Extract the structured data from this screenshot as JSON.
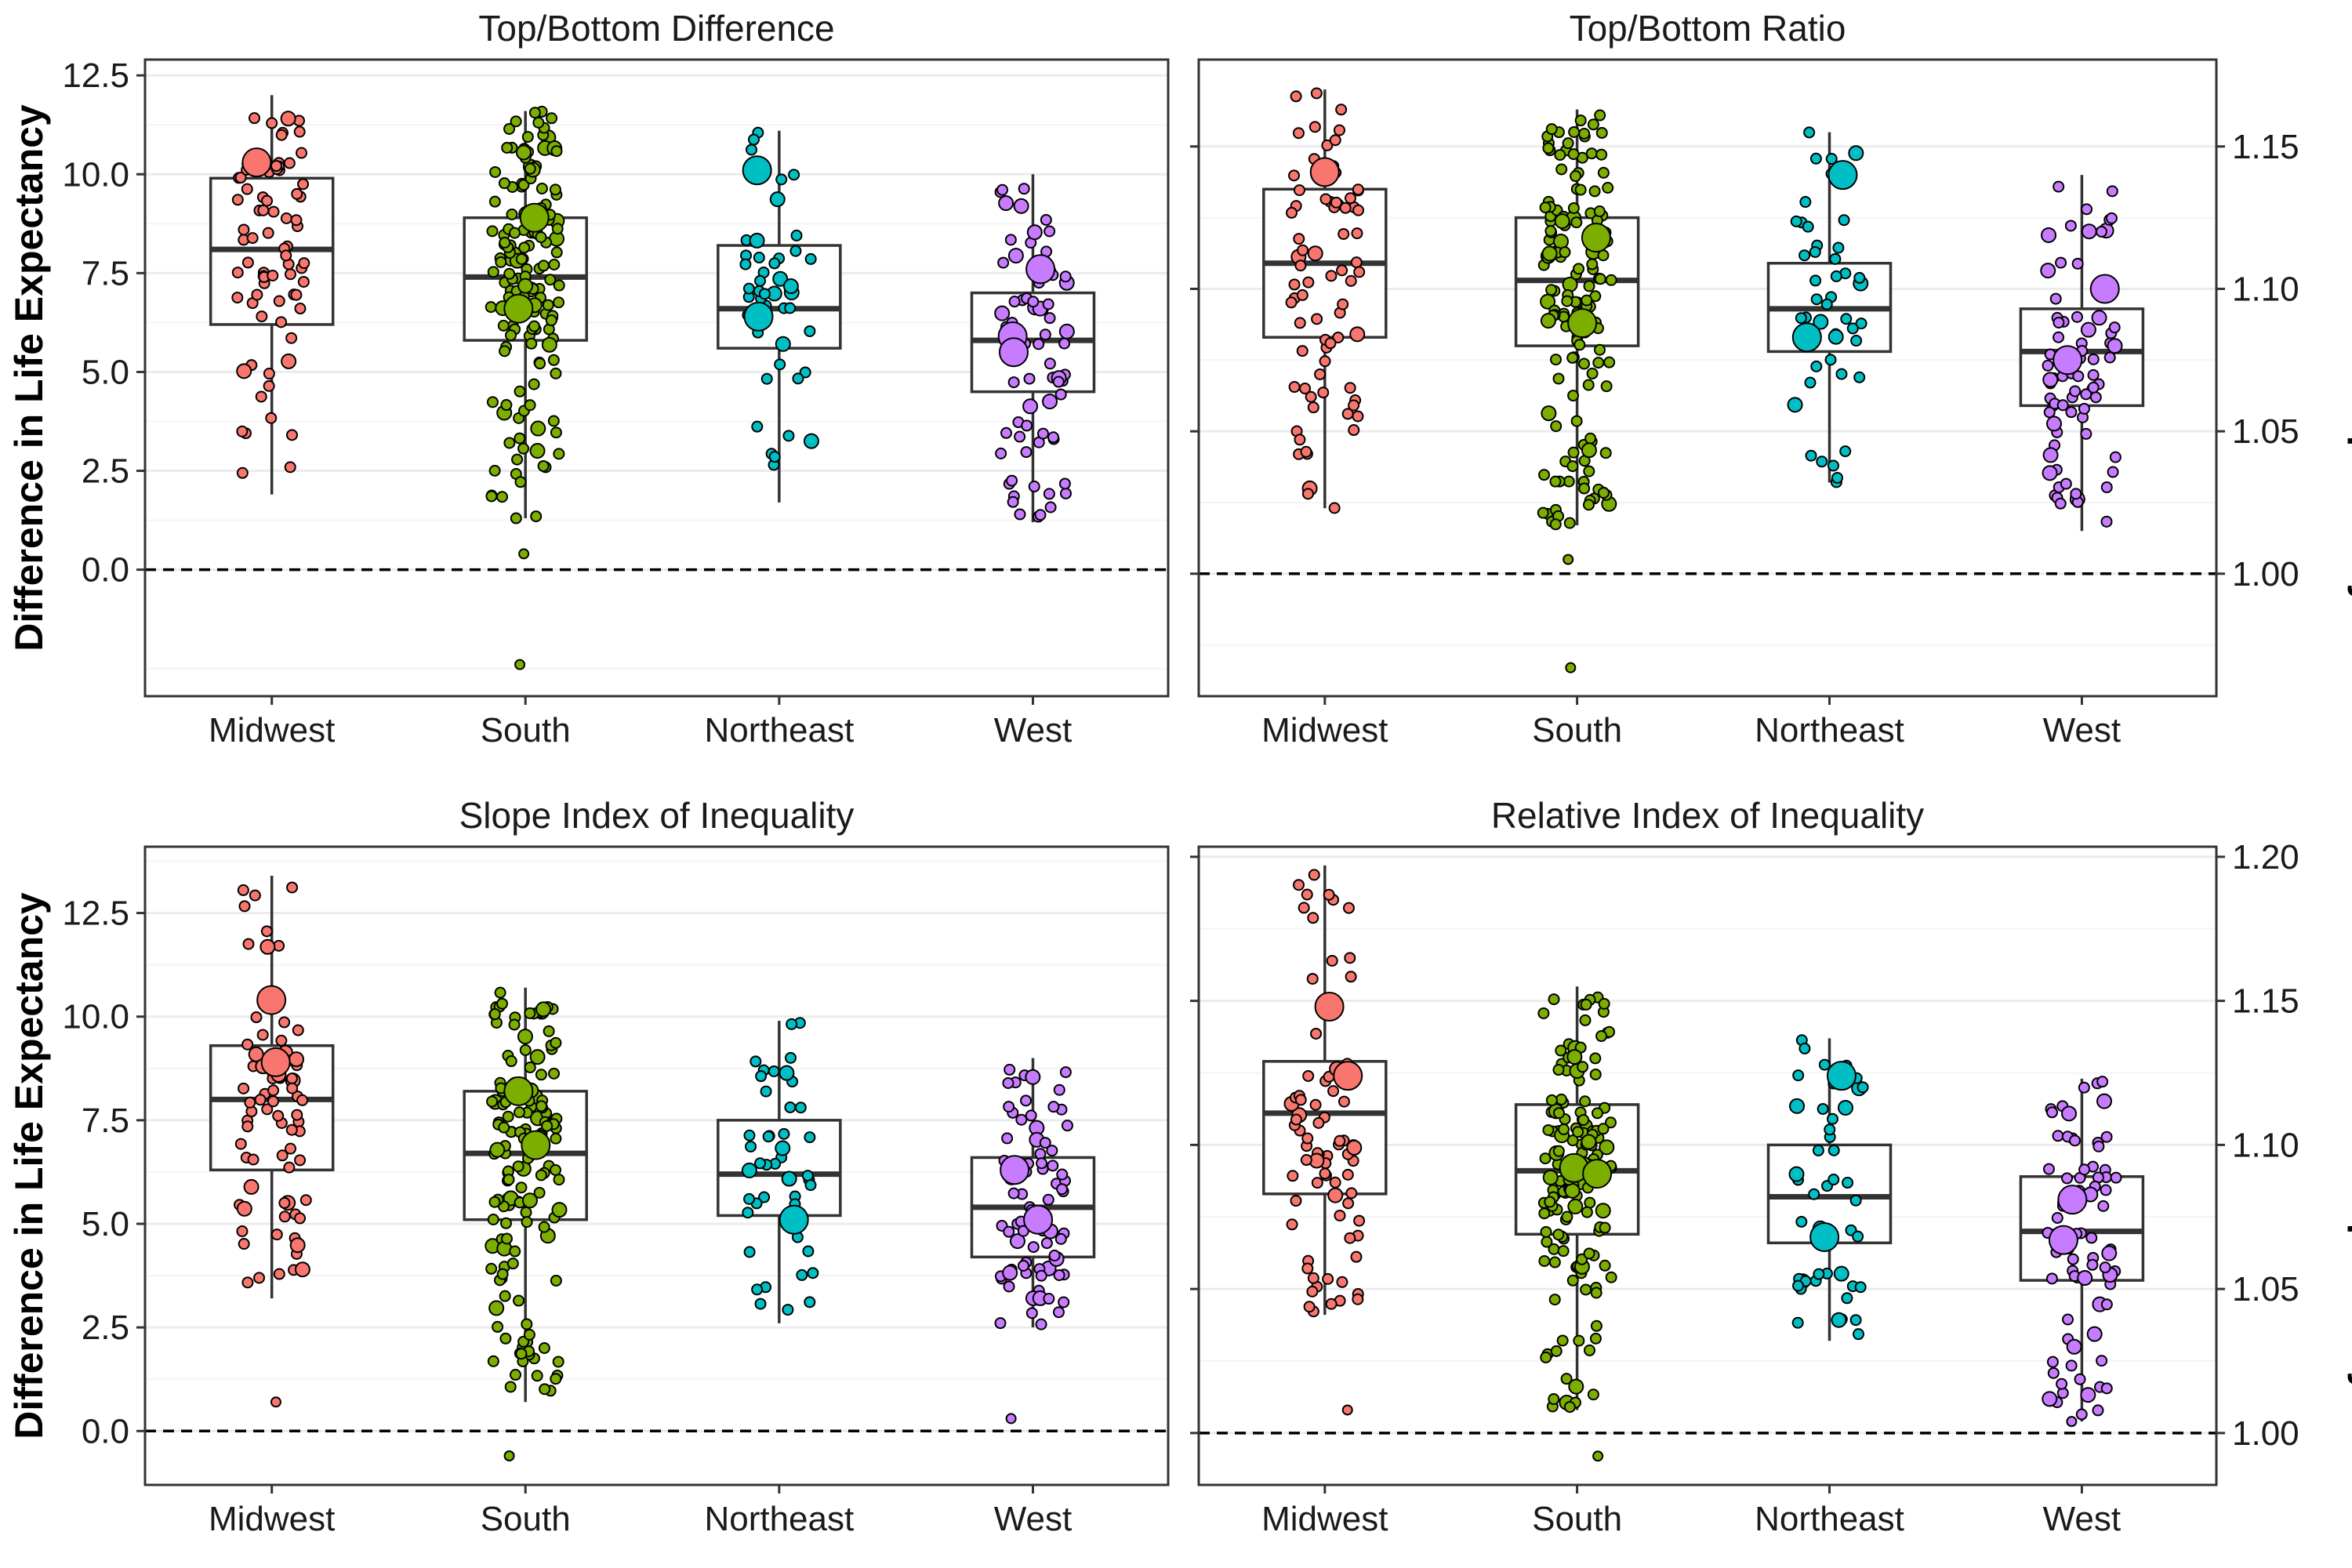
{
  "chart_data": [
    {
      "type": "boxplot",
      "title": "Top/Bottom Difference",
      "ylabel": "Difference in Life Expectancy",
      "axis_side": "left",
      "categories": [
        "Midwest",
        "South",
        "Northeast",
        "West"
      ],
      "ylim": [
        -3.2,
        12.9
      ],
      "yticks": [
        0.0,
        2.5,
        5.0,
        7.5,
        10.0,
        12.5
      ],
      "ytick_labels": [
        "0.0",
        "2.5",
        "5.0",
        "7.5",
        "10.0",
        "12.5"
      ],
      "minor_ticks": [
        -2.5,
        1.25,
        3.75,
        6.25,
        8.75,
        11.25
      ],
      "reference_line": 0,
      "boxes": [
        {
          "category": "Midwest",
          "whisker_low": 1.9,
          "q1": 6.2,
          "median": 8.1,
          "q3": 9.9,
          "whisker_high": 12.0
        },
        {
          "category": "South",
          "whisker_low": 1.3,
          "q1": 5.8,
          "median": 7.4,
          "q3": 8.9,
          "whisker_high": 11.6
        },
        {
          "category": "Northeast",
          "whisker_low": 1.7,
          "q1": 5.6,
          "median": 6.6,
          "q3": 8.2,
          "whisker_high": 11.1
        },
        {
          "category": "West",
          "whisker_low": 1.2,
          "q1": 4.5,
          "median": 5.8,
          "q3": 7.0,
          "whisker_high": 10.0
        }
      ],
      "n_points": [
        75,
        150,
        45,
        75
      ],
      "large_points": [
        {
          "category": "Midwest",
          "value": 10.3
        },
        {
          "category": "South",
          "value": 8.9
        },
        {
          "category": "South",
          "value": 6.6
        },
        {
          "category": "Northeast",
          "value": 10.1
        },
        {
          "category": "Northeast",
          "value": 6.4
        },
        {
          "category": "West",
          "value": 7.6
        },
        {
          "category": "West",
          "value": 5.9
        },
        {
          "category": "West",
          "value": 5.5
        }
      ],
      "outliers": [
        {
          "category": "South",
          "value": 0.4
        },
        {
          "category": "South",
          "value": -2.4
        }
      ]
    },
    {
      "type": "boxplot",
      "title": "Top/Bottom Ratio",
      "ylabel": "Ratio of Life Expectancy",
      "axis_side": "right",
      "categories": [
        "Midwest",
        "South",
        "Northeast",
        "West"
      ],
      "ylim": [
        0.957,
        1.1805
      ],
      "yticks": [
        1.0,
        1.05,
        1.1,
        1.15
      ],
      "ytick_labels": [
        "1.00",
        "1.05",
        "1.10",
        "1.15"
      ],
      "minor_ticks": [
        0.975,
        1.025,
        1.075,
        1.125
      ],
      "reference_line": 1.0,
      "boxes": [
        {
          "category": "Midwest",
          "whisker_low": 1.023,
          "q1": 1.083,
          "median": 1.109,
          "q3": 1.135,
          "whisker_high": 1.17
        },
        {
          "category": "South",
          "whisker_low": 1.017,
          "q1": 1.08,
          "median": 1.103,
          "q3": 1.125,
          "whisker_high": 1.163
        },
        {
          "category": "Northeast",
          "whisker_low": 1.032,
          "q1": 1.078,
          "median": 1.093,
          "q3": 1.109,
          "whisker_high": 1.155
        },
        {
          "category": "West",
          "whisker_low": 1.015,
          "q1": 1.059,
          "median": 1.078,
          "q3": 1.093,
          "whisker_high": 1.14
        }
      ],
      "n_points": [
        75,
        150,
        45,
        75
      ],
      "large_points": [
        {
          "category": "Midwest",
          "value": 1.141
        },
        {
          "category": "South",
          "value": 1.118
        },
        {
          "category": "South",
          "value": 1.088
        },
        {
          "category": "Northeast",
          "value": 1.14
        },
        {
          "category": "Northeast",
          "value": 1.083
        },
        {
          "category": "West",
          "value": 1.1
        },
        {
          "category": "West",
          "value": 1.075
        }
      ],
      "outliers": [
        {
          "category": "South",
          "value": 1.005
        },
        {
          "category": "South",
          "value": 0.967
        }
      ]
    },
    {
      "type": "boxplot",
      "title": "Slope Index of Inequality",
      "ylabel": "Difference in Life Expectancy",
      "axis_side": "left",
      "categories": [
        "Midwest",
        "South",
        "Northeast",
        "West"
      ],
      "ylim": [
        -1.3,
        14.1
      ],
      "yticks": [
        0.0,
        2.5,
        5.0,
        7.5,
        10.0,
        12.5
      ],
      "ytick_labels": [
        "0.0",
        "2.5",
        "5.0",
        "7.5",
        "10.0",
        "12.5"
      ],
      "minor_ticks": [
        1.25,
        3.75,
        6.25,
        8.75,
        11.25,
        13.75
      ],
      "reference_line": 0,
      "boxes": [
        {
          "category": "Midwest",
          "whisker_low": 3.2,
          "q1": 6.3,
          "median": 8.0,
          "q3": 9.3,
          "whisker_high": 13.4
        },
        {
          "category": "South",
          "whisker_low": 0.7,
          "q1": 5.1,
          "median": 6.7,
          "q3": 8.2,
          "whisker_high": 10.7
        },
        {
          "category": "Northeast",
          "whisker_low": 2.6,
          "q1": 5.2,
          "median": 6.2,
          "q3": 7.5,
          "whisker_high": 9.9
        },
        {
          "category": "West",
          "whisker_low": 2.5,
          "q1": 4.2,
          "median": 5.4,
          "q3": 6.6,
          "whisker_high": 9.0
        }
      ],
      "n_points": [
        75,
        150,
        45,
        75
      ],
      "large_points": [
        {
          "category": "Midwest",
          "value": 10.4
        },
        {
          "category": "Midwest",
          "value": 8.9
        },
        {
          "category": "South",
          "value": 8.2
        },
        {
          "category": "South",
          "value": 6.9
        },
        {
          "category": "Northeast",
          "value": 5.1
        },
        {
          "category": "West",
          "value": 6.3
        },
        {
          "category": "West",
          "value": 5.1
        }
      ],
      "outliers": [
        {
          "category": "Midwest",
          "value": 0.7
        },
        {
          "category": "South",
          "value": -0.6
        },
        {
          "category": "West",
          "value": 0.3
        }
      ]
    },
    {
      "type": "boxplot",
      "title": "Relative Index of Inequality",
      "ylabel": "Ratio of Life Expectancy",
      "axis_side": "right",
      "categories": [
        "Midwest",
        "South",
        "Northeast",
        "West"
      ],
      "ylim": [
        0.982,
        1.2035
      ],
      "yticks": [
        1.0,
        1.05,
        1.1,
        1.15,
        1.2
      ],
      "ytick_labels": [
        "1.00",
        "1.05",
        "1.10",
        "1.15",
        "1.20"
      ],
      "minor_ticks": [
        1.025,
        1.075,
        1.125,
        1.175
      ],
      "reference_line": 1.0,
      "boxes": [
        {
          "category": "Midwest",
          "whisker_low": 1.041,
          "q1": 1.083,
          "median": 1.111,
          "q3": 1.129,
          "whisker_high": 1.197
        },
        {
          "category": "South",
          "whisker_low": 1.008,
          "q1": 1.069,
          "median": 1.091,
          "q3": 1.114,
          "whisker_high": 1.155
        },
        {
          "category": "Northeast",
          "whisker_low": 1.032,
          "q1": 1.066,
          "median": 1.082,
          "q3": 1.1,
          "whisker_high": 1.137
        },
        {
          "category": "West",
          "whisker_low": 1.004,
          "q1": 1.053,
          "median": 1.07,
          "q3": 1.089,
          "whisker_high": 1.123
        }
      ],
      "n_points": [
        75,
        150,
        45,
        75
      ],
      "large_points": [
        {
          "category": "Midwest",
          "value": 1.148
        },
        {
          "category": "Midwest",
          "value": 1.124
        },
        {
          "category": "South",
          "value": 1.092
        },
        {
          "category": "South",
          "value": 1.09
        },
        {
          "category": "Northeast",
          "value": 1.124
        },
        {
          "category": "Northeast",
          "value": 1.068
        },
        {
          "category": "West",
          "value": 1.081
        },
        {
          "category": "West",
          "value": 1.067
        }
      ],
      "outliers": [
        {
          "category": "Midwest",
          "value": 1.008
        },
        {
          "category": "South",
          "value": 0.992
        },
        {
          "category": "West",
          "value": 1.004
        }
      ]
    }
  ],
  "colors": {
    "Midwest": "#f8766d",
    "South": "#7cae00",
    "Northeast": "#00bfc4",
    "West": "#c77cff",
    "box_line": "#333333",
    "grid": "#ebebeb",
    "panel_border": "#333333"
  }
}
